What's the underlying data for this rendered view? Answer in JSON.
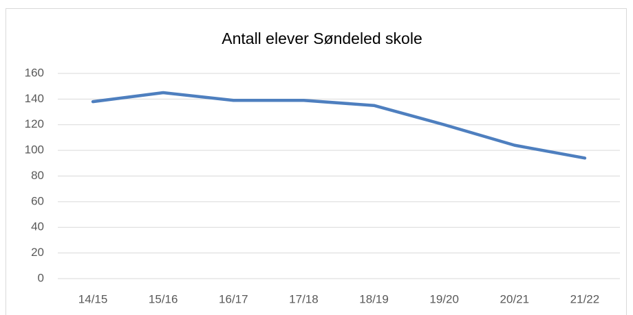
{
  "chart_data": {
    "type": "line",
    "title": "Antall elever Søndeled skole",
    "categories": [
      "14/15",
      "15/16",
      "16/17",
      "17/18",
      "18/19",
      "19/20",
      "20/21",
      "21/22"
    ],
    "values": [
      138,
      145,
      139,
      139,
      135,
      120,
      104,
      94
    ],
    "color": "#4e7fbf",
    "ylim": [
      0,
      160
    ],
    "yticks": [
      0,
      20,
      40,
      60,
      80,
      100,
      120,
      140,
      160
    ],
    "grid": true
  }
}
